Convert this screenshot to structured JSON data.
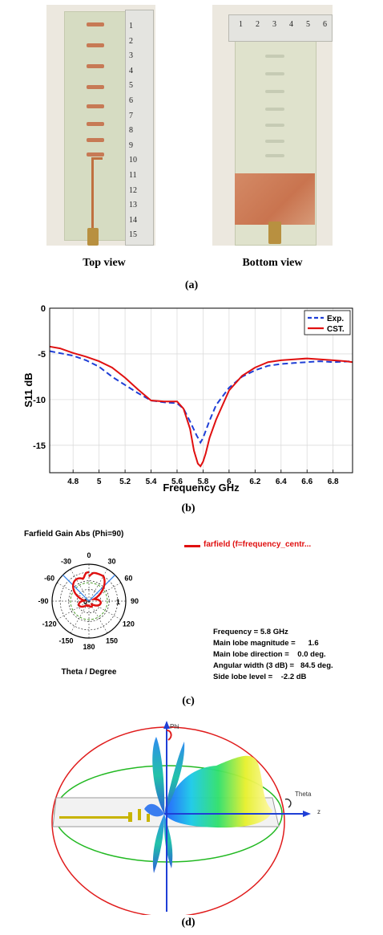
{
  "figure_a": {
    "top_view_label": "Top view",
    "bottom_view_label": "Bottom view",
    "caption": "(a)",
    "ruler_top_numbers": [
      "1",
      "2",
      "3",
      "4",
      "5",
      "6",
      "7",
      "8",
      "9",
      "10",
      "11",
      "12",
      "13",
      "14",
      "15"
    ],
    "ruler_bottom_numbers": [
      "1",
      "2",
      "3",
      "4",
      "5",
      "6"
    ]
  },
  "figure_b": {
    "caption": "(b)",
    "chart_data": {
      "type": "line",
      "xlabel": "Frequency GHz",
      "ylabel": "S11 dB",
      "xlim": [
        4.62,
        6.95
      ],
      "ylim": [
        -18,
        0
      ],
      "xticks": [
        "4.8",
        "5",
        "5.2",
        "5.4",
        "5.6",
        "5.8",
        "6",
        "6.2",
        "6.4",
        "6.6",
        "6.8"
      ],
      "yticks": [
        "0",
        "-5",
        "-10",
        "-15"
      ],
      "grid": true,
      "legend_position": "top-right",
      "series": [
        {
          "name": "Exp.",
          "color": "#1f3fd6",
          "style": "dashed",
          "x": [
            4.62,
            4.8,
            4.9,
            5.0,
            5.1,
            5.2,
            5.3,
            5.4,
            5.5,
            5.6,
            5.65,
            5.7,
            5.75,
            5.78,
            5.8,
            5.85,
            5.9,
            6.0,
            6.1,
            6.2,
            6.3,
            6.4,
            6.5,
            6.6,
            6.7,
            6.8,
            6.95
          ],
          "y": [
            -4.7,
            -5.2,
            -5.7,
            -6.4,
            -7.5,
            -8.4,
            -9.3,
            -10.1,
            -10.3,
            -10.4,
            -11.0,
            -12.4,
            -13.9,
            -14.7,
            -14.2,
            -12.3,
            -10.6,
            -8.7,
            -7.5,
            -6.8,
            -6.3,
            -6.1,
            -6.0,
            -5.9,
            -5.8,
            -5.9,
            -5.8
          ]
        },
        {
          "name": "CST.",
          "color": "#e01010",
          "style": "solid",
          "x": [
            4.62,
            4.7,
            4.8,
            4.9,
            5.0,
            5.1,
            5.2,
            5.3,
            5.4,
            5.5,
            5.6,
            5.65,
            5.7,
            5.73,
            5.76,
            5.78,
            5.8,
            5.82,
            5.85,
            5.9,
            6.0,
            6.1,
            6.2,
            6.3,
            6.4,
            6.5,
            6.6,
            6.7,
            6.8,
            6.9,
            6.95
          ],
          "y": [
            -4.2,
            -4.4,
            -4.9,
            -5.3,
            -5.8,
            -6.5,
            -7.6,
            -8.9,
            -10.1,
            -10.2,
            -10.2,
            -11.0,
            -13.2,
            -15.6,
            -17.0,
            -17.3,
            -16.8,
            -15.9,
            -14.2,
            -12.2,
            -9.0,
            -7.4,
            -6.5,
            -5.9,
            -5.7,
            -5.6,
            -5.5,
            -5.6,
            -5.7,
            -5.8,
            -5.9
          ]
        }
      ]
    }
  },
  "figure_c": {
    "caption": "(c)",
    "chart_data": {
      "type": "polar",
      "title": "Farfield Gain Abs (Phi=90)",
      "xlabel": "Theta / Degree",
      "angle_labels": [
        "0",
        "30",
        "60",
        "90",
        "120",
        "150",
        "180",
        "-150",
        "-120",
        "-90",
        "-60",
        "-30"
      ],
      "radial_labels": [
        "0",
        "1"
      ],
      "legend": "farfield (f=frequency_centr...",
      "series_color": "#e01010",
      "info": {
        "frequency": "Frequency = 5.8 GHz",
        "main_lobe_magnitude": "Main lobe magnitude =      1.6",
        "main_lobe_direction": "Main lobe direction =    0.0 deg.",
        "angular_width": "Angular width (3 dB) =   84.5 deg.",
        "side_lobe_level": "Side lobe level =    -2.2 dB"
      }
    }
  },
  "figure_d": {
    "caption": "(d)",
    "phi_label": "Phi",
    "theta_label": "Theta",
    "z_label": "z"
  }
}
